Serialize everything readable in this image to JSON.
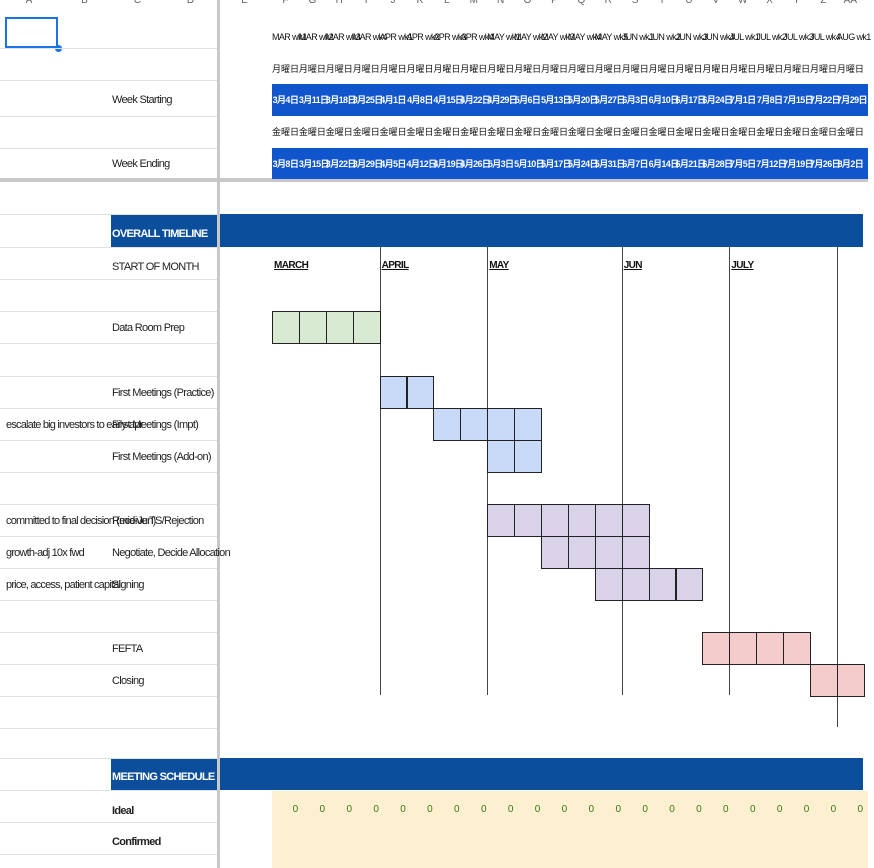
{
  "column_letters": [
    "A",
    "B",
    "C",
    "D",
    "E",
    "F",
    "G",
    "H",
    "I",
    "J",
    "K",
    "L",
    "M",
    "N",
    "O",
    "P",
    "Q",
    "R",
    "S",
    "T",
    "U",
    "V",
    "W",
    "X",
    "Y",
    "Z",
    "AA"
  ],
  "labels": {
    "week_starting": "Week Starting",
    "week_ending": "Week Ending",
    "start_of_month": "START OF MONTH",
    "overall_timeline": "OVERALL TIMELINE",
    "meeting_schedule": "MEETING SCHEDULE",
    "ideal": "Ideal",
    "confirmed": "Confirmed"
  },
  "weeks": [
    "MAR wk1",
    "MAR wk2",
    "MAR wk3",
    "MAR wk4",
    "APR wk1",
    "APR wk2",
    "APR wk3",
    "APR wk4",
    "MAY wk1",
    "MAY wk2",
    "MAY wk3",
    "MAY wk4",
    "MAY wk5",
    "JUN wk1",
    "JUN wk2",
    "JUN wk3",
    "JUN wk4",
    "JUL wk1",
    "JUL wk2",
    "JUL wk3",
    "JUL wk4",
    "AUG wk1"
  ],
  "monday_label": "月曜日",
  "friday_label": "金曜日",
  "week_start_dates": [
    "3月4日",
    "3月11日",
    "3月18日",
    "3月25日",
    "4月1日",
    "4月8日",
    "4月15日",
    "4月22日",
    "4月29日",
    "5月6日",
    "5月13日",
    "5月20日",
    "5月27日",
    "6月3日",
    "6月10日",
    "6月17日",
    "6月24日",
    "7月1日",
    "7月8日",
    "7月15日",
    "7月22日",
    "7月29日"
  ],
  "week_end_dates": [
    "3月8日",
    "3月15日",
    "3月22日",
    "3月29日",
    "4月5日",
    "4月12日",
    "4月19日",
    "4月26日",
    "5月3日",
    "5月10日",
    "5月17日",
    "5月24日",
    "5月31日",
    "6月7日",
    "6月14日",
    "6月21日",
    "6月28日",
    "7月5日",
    "7月12日",
    "7月19日",
    "7月26日",
    "8月2日"
  ],
  "months": [
    {
      "name": "MARCH",
      "week": 0
    },
    {
      "name": "APRIL",
      "week": 4
    },
    {
      "name": "MAY",
      "week": 8
    },
    {
      "name": "JUN",
      "week": 13
    },
    {
      "name": "JULY",
      "week": 17
    }
  ],
  "tasks": [
    {
      "name": "Data Room Prep",
      "note": "",
      "start": 0,
      "weeks": 4,
      "color": "#d9ead3"
    },
    {
      "name": "First Meetings (Practice)",
      "note": "",
      "start": 4,
      "weeks": 2,
      "color": "#c9daf8"
    },
    {
      "name": "First Meetings (Impt)",
      "note": "escalate big investors to early-apr",
      "start": 6,
      "weeks": 4,
      "color": "#c9daf8"
    },
    {
      "name": "First Meetings (Add-on)",
      "note": "",
      "start": 8,
      "weeks": 2,
      "color": "#c9daf8"
    },
    {
      "name": "Receive TS/Rejection",
      "note": "committed to final decision (mid-Jun)",
      "start": 8,
      "weeks": 6,
      "color": "#d9d2e9"
    },
    {
      "name": "Negotiate, Decide Allocation",
      "note": "growth-adj 10x fwd",
      "start": 10,
      "weeks": 4,
      "color": "#d9d2e9"
    },
    {
      "name": "Signing",
      "note": "price, access, patient capital",
      "start": 12,
      "weeks": 4,
      "color": "#d9d2e9"
    },
    {
      "name": "FEFTA",
      "note": "",
      "start": 16,
      "weeks": 4,
      "color": "#f4cccc"
    },
    {
      "name": "Closing",
      "note": "",
      "start": 20,
      "weeks": 2,
      "color": "#f4cccc"
    }
  ],
  "ideal_values": [
    "0",
    "0",
    "0",
    "0",
    "0",
    "0",
    "0",
    "0",
    "0",
    "0",
    "0",
    "0",
    "0",
    "0",
    "0",
    "0",
    "0",
    "0",
    "0",
    "0",
    "0",
    "0"
  ],
  "colors": {
    "header_blue": "#1155cc",
    "section_blue": "#0b4f9c",
    "meeting_bg": "#fdf0d0",
    "zero_green": "#38761d"
  }
}
